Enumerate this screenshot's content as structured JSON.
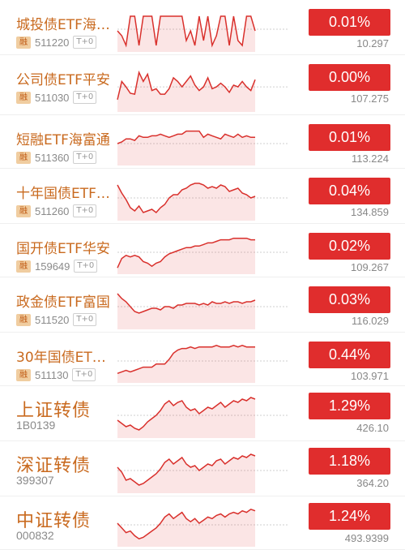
{
  "colors": {
    "accent_red": "#e02d2d",
    "name_orange": "#c96a1f",
    "line_red": "#d9302c"
  },
  "rows": [
    {
      "name": "城投债ETF海…",
      "code": "511220",
      "margin_tag": "融",
      "t_tag": "T+0",
      "change": "0.01%",
      "price": "10.297",
      "style": "small",
      "sparkline": [
        28,
        34,
        46,
        10,
        10,
        46,
        10,
        10,
        10,
        46,
        10,
        10,
        10,
        10,
        10,
        10,
        40,
        28,
        46,
        10,
        40,
        10,
        46,
        34,
        10,
        10,
        46,
        10,
        40,
        46,
        10,
        10,
        28
      ]
    },
    {
      "name": "公司债ETF平安",
      "code": "511030",
      "margin_tag": "融",
      "t_tag": "T+0",
      "change": "0.00%",
      "price": "107.275",
      "style": "small",
      "sparkline": [
        40,
        20,
        26,
        33,
        34,
        10,
        20,
        12,
        30,
        28,
        34,
        34,
        28,
        16,
        20,
        26,
        20,
        14,
        24,
        30,
        26,
        16,
        28,
        26,
        22,
        26,
        32,
        24,
        26,
        20,
        26,
        30,
        18
      ]
    },
    {
      "name": "短融ETF海富通",
      "code": "511360",
      "margin_tag": "融",
      "t_tag": "T+0",
      "change": "0.01%",
      "price": "113.224",
      "style": "small",
      "sparkline": [
        26,
        24,
        20,
        20,
        22,
        16,
        18,
        18,
        16,
        16,
        14,
        16,
        18,
        16,
        14,
        14,
        10,
        10,
        10,
        10,
        18,
        14,
        16,
        18,
        20,
        14,
        16,
        18,
        14,
        18,
        16,
        18,
        18
      ]
    },
    {
      "name": "十年国债ETF…",
      "code": "511260",
      "margin_tag": "融",
      "t_tag": "T+0",
      "change": "0.04%",
      "price": "134.859",
      "style": "small",
      "sparkline": [
        10,
        20,
        28,
        38,
        42,
        36,
        44,
        42,
        40,
        44,
        38,
        34,
        26,
        22,
        22,
        16,
        14,
        10,
        8,
        8,
        10,
        14,
        12,
        14,
        10,
        12,
        18,
        16,
        14,
        20,
        22,
        26,
        24
      ]
    },
    {
      "name": "国开债ETF华安",
      "code": "159649",
      "margin_tag": "融",
      "t_tag": "T+0",
      "change": "0.02%",
      "price": "109.267",
      "style": "small",
      "sparkline": [
        46,
        34,
        30,
        32,
        30,
        32,
        38,
        40,
        44,
        40,
        38,
        32,
        28,
        26,
        24,
        22,
        20,
        20,
        18,
        18,
        16,
        14,
        14,
        12,
        10,
        10,
        10,
        8,
        8,
        8,
        8,
        10,
        10
      ]
    },
    {
      "name": "政金债ETF富国",
      "code": "511520",
      "margin_tag": "融",
      "t_tag": "T+0",
      "change": "0.03%",
      "price": "116.029",
      "style": "small",
      "sparkline": [
        10,
        16,
        20,
        26,
        32,
        34,
        32,
        30,
        28,
        28,
        30,
        26,
        26,
        28,
        24,
        24,
        22,
        22,
        22,
        24,
        22,
        24,
        20,
        22,
        22,
        20,
        22,
        20,
        20,
        22,
        20,
        20,
        18
      ]
    },
    {
      "name": "30年国债ET…",
      "code": "511130",
      "margin_tag": "融",
      "t_tag": "T+0",
      "change": "0.44%",
      "price": "103.971",
      "style": "small",
      "sparkline": [
        42,
        40,
        38,
        40,
        38,
        36,
        34,
        34,
        34,
        30,
        30,
        30,
        24,
        16,
        12,
        10,
        10,
        8,
        10,
        8,
        8,
        8,
        8,
        6,
        8,
        8,
        8,
        6,
        8,
        6,
        8,
        8,
        8
      ]
    },
    {
      "name": "上证转债",
      "code": "1B0139",
      "change": "1.29%",
      "price": "426.10",
      "style": "big",
      "sparkline": [
        32,
        36,
        40,
        38,
        42,
        44,
        40,
        34,
        30,
        26,
        20,
        12,
        8,
        14,
        10,
        8,
        16,
        20,
        18,
        24,
        20,
        16,
        18,
        14,
        10,
        16,
        12,
        8,
        10,
        6,
        8,
        4,
        6
      ]
    },
    {
      "name": "深证转债",
      "code": "399307",
      "change": "1.18%",
      "price": "364.20",
      "style": "big",
      "sparkline": [
        22,
        28,
        38,
        36,
        40,
        44,
        42,
        38,
        34,
        30,
        24,
        16,
        12,
        18,
        14,
        10,
        18,
        22,
        20,
        26,
        22,
        18,
        20,
        14,
        12,
        18,
        14,
        10,
        12,
        8,
        10,
        6,
        8
      ]
    },
    {
      "name": "中证转债",
      "code": "000832",
      "change": "1.24%",
      "price": "493.9399",
      "style": "big",
      "sparkline": [
        24,
        30,
        36,
        34,
        40,
        44,
        42,
        38,
        34,
        30,
        24,
        16,
        12,
        18,
        14,
        10,
        18,
        22,
        18,
        24,
        20,
        16,
        18,
        14,
        12,
        16,
        12,
        10,
        12,
        8,
        10,
        6,
        8
      ]
    }
  ]
}
